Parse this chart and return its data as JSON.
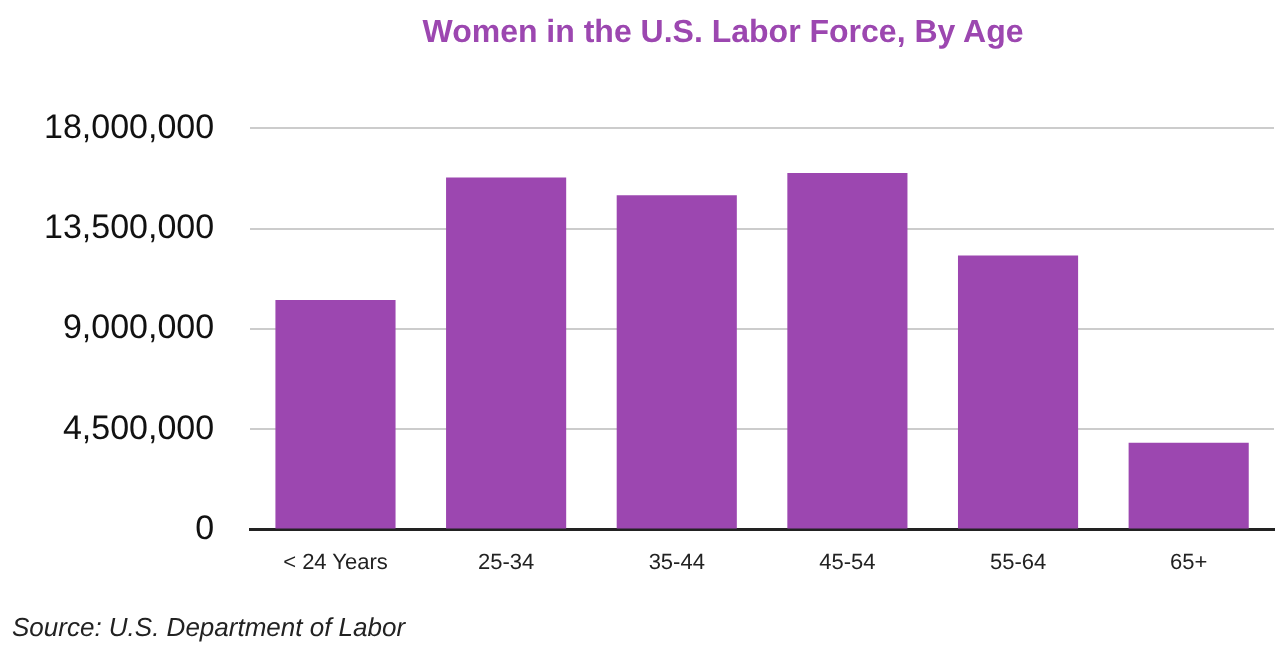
{
  "chart_data": {
    "type": "bar",
    "title": "Women in the U.S. Labor Force, By Age",
    "categories": [
      "< 24 Years",
      "25-34",
      "35-44",
      "45-54",
      "55-64",
      "65+"
    ],
    "values": [
      10300000,
      15800000,
      15000000,
      16000000,
      12300000,
      3900000
    ],
    "color": "#9c47b0",
    "ylim": [
      0,
      18000000
    ],
    "yticks": [
      0,
      {
        "value": 4500000,
        "label": "4,500,000"
      },
      {
        "value": 9000000,
        "label": "9,000,000"
      },
      {
        "value": 13500000,
        "label": "13,500,000"
      },
      {
        "value": 18000000,
        "label": "18,000,000"
      }
    ],
    "grid": "y",
    "annotations": [
      "Source: U.S. Department of Labor"
    ]
  }
}
